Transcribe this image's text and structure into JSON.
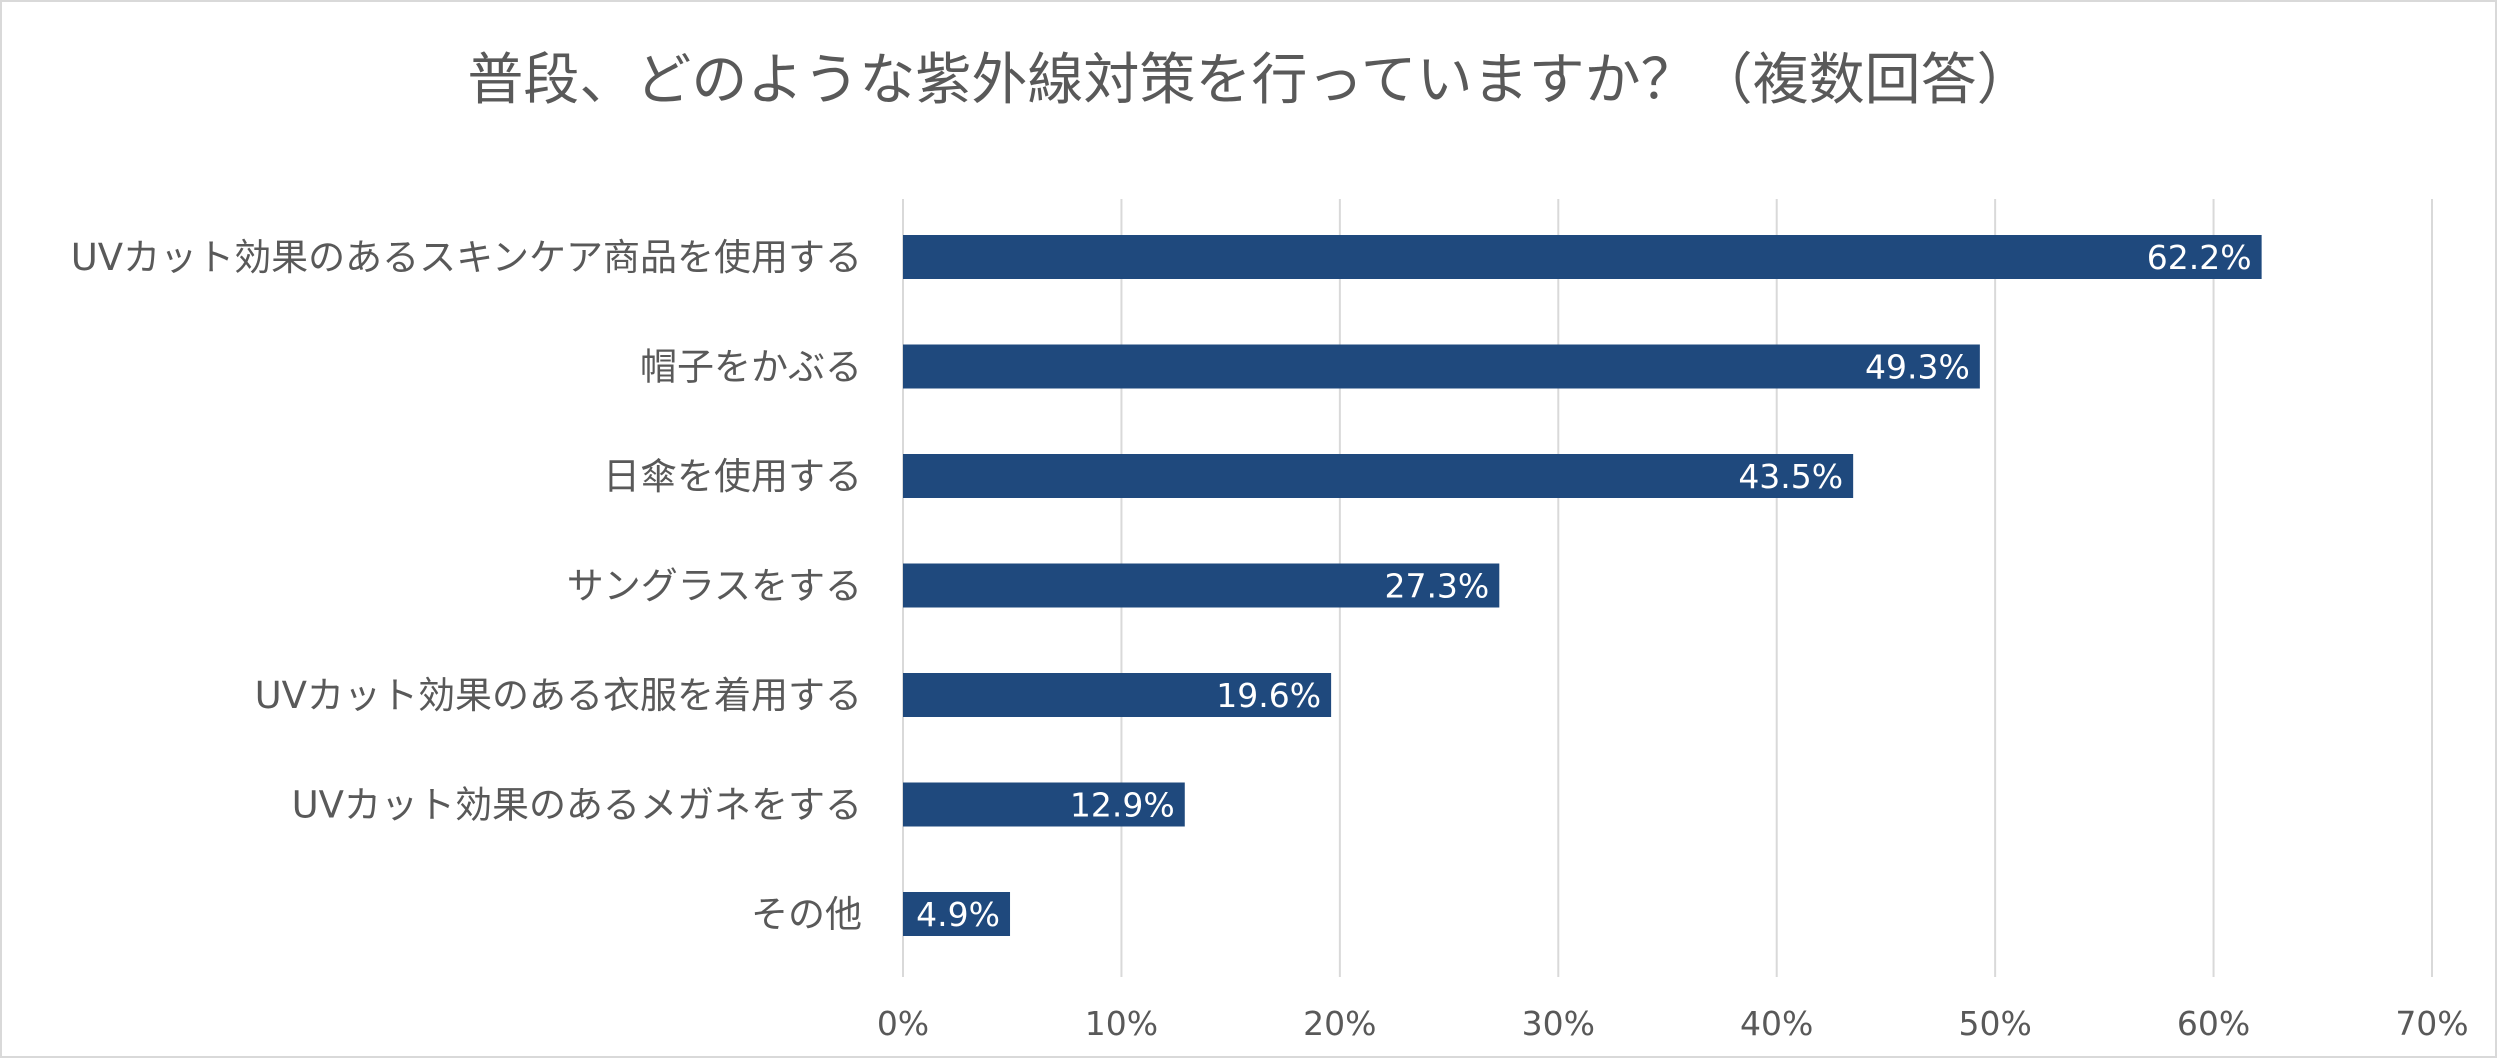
{
  "chart_data": {
    "type": "bar",
    "orientation": "horizontal",
    "title": "普段、どのような紫外線対策を行っていますか？（複数回答）",
    "xlabel": "",
    "ylabel": "",
    "categories": [
      "UVカット効果のあるスキンケア商品を使用する",
      "帽子をかぶる",
      "日傘を使用する",
      "サングラスをする",
      "UVカット効果のある衣服を着用する",
      "UVカット効果のあるメガネをする",
      "その他"
    ],
    "values": [
      62.2,
      49.3,
      43.5,
      27.3,
      19.6,
      12.9,
      4.9
    ],
    "data_labels": [
      "62.2%",
      "49.3%",
      "43.5%",
      "27.3%",
      "19.6%",
      "12.9%",
      "4.9%"
    ],
    "xlim": [
      0,
      70
    ],
    "x_ticks": [
      0,
      10,
      20,
      30,
      40,
      50,
      60,
      70
    ],
    "x_tick_labels": [
      "0%",
      "10%",
      "20%",
      "30%",
      "40%",
      "50%",
      "60%",
      "70%"
    ],
    "grid": "vertical",
    "legend": "none",
    "colors": {
      "bar": "#1f497d",
      "gridline": "#d9d9d9",
      "text": "#595959",
      "data_label": "#ffffff",
      "border": "#d9d9d9"
    }
  }
}
